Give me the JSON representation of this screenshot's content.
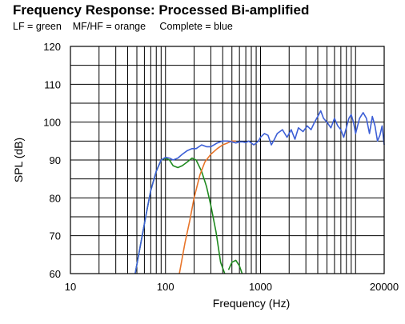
{
  "chart_data": {
    "type": "line",
    "title": "Frequency Response: Processed Bi-amplified",
    "subtitle": "LF = green    MF/HF = orange     Complete = blue",
    "xlabel": "Frequency (Hz)",
    "ylabel": "SPL (dB)",
    "x_scale": "log",
    "xlim": [
      10,
      20000
    ],
    "ylim": [
      60,
      120
    ],
    "x_tick_labels": [
      "10",
      "100",
      "1000",
      "20000"
    ],
    "x_tick_values": [
      10,
      100,
      1000,
      20000
    ],
    "y_ticks": [
      60,
      70,
      80,
      90,
      100,
      110,
      120
    ],
    "grid": true,
    "series": [
      {
        "color": "#1f8a1f",
        "x": [
          48,
          55,
          63,
          70,
          80,
          90,
          100,
          110,
          120,
          135,
          150,
          170,
          190,
          210,
          240,
          270,
          300,
          340,
          380,
          420,
          420,
          460,
          500,
          550,
          600,
          640
        ],
        "y": [
          60,
          68,
          76,
          82,
          87,
          90,
          90.5,
          90,
          88.5,
          88,
          88.5,
          89.5,
          90.5,
          90,
          87,
          83,
          78,
          71,
          63,
          60,
          null,
          61,
          63,
          63.5,
          62,
          60
        ]
      },
      {
        "color": "#e8752a",
        "x": [
          140,
          160,
          180,
          200,
          230,
          260,
          300,
          350,
          400,
          450,
          500,
          550
        ],
        "y": [
          60,
          68,
          74,
          80,
          86,
          89.5,
          91.5,
          93,
          94,
          94.5,
          95,
          95
        ]
      },
      {
        "color": "#3d5fd6",
        "x": [
          48,
          55,
          63,
          70,
          80,
          90,
          100,
          110,
          120,
          135,
          150,
          170,
          190,
          210,
          240,
          270,
          300,
          350,
          400,
          450,
          500,
          550,
          600,
          650,
          700,
          750,
          800,
          850,
          900,
          950,
          1000,
          1100,
          1200,
          1300,
          1400,
          1500,
          1700,
          1900,
          2100,
          2300,
          2500,
          2800,
          3100,
          3400,
          3700,
          4000,
          4300,
          4600,
          5000,
          5500,
          6000,
          6500,
          7000,
          7500,
          8000,
          8500,
          9000,
          9500,
          10000,
          11000,
          12000,
          13000,
          14000,
          15000,
          16000,
          17000,
          18000,
          19000,
          20000
        ],
        "y": [
          60,
          68,
          76,
          82,
          87,
          90,
          90.7,
          90.5,
          90,
          90.5,
          91.5,
          92.5,
          93,
          93,
          94,
          93.5,
          93.5,
          94.5,
          95,
          95,
          94.8,
          94.5,
          94.8,
          94.8,
          94.6,
          95,
          94.5,
          94,
          94.5,
          95,
          96,
          97,
          96.5,
          94,
          95.5,
          97,
          98,
          96,
          98,
          95.5,
          98.5,
          97.5,
          99,
          98,
          100,
          101.5,
          103,
          101,
          100,
          98.5,
          101,
          99,
          98,
          96,
          98.5,
          101,
          102,
          100,
          97,
          101,
          102.5,
          101,
          97,
          101.5,
          99,
          95,
          96.5,
          99,
          94
        ]
      }
    ]
  }
}
